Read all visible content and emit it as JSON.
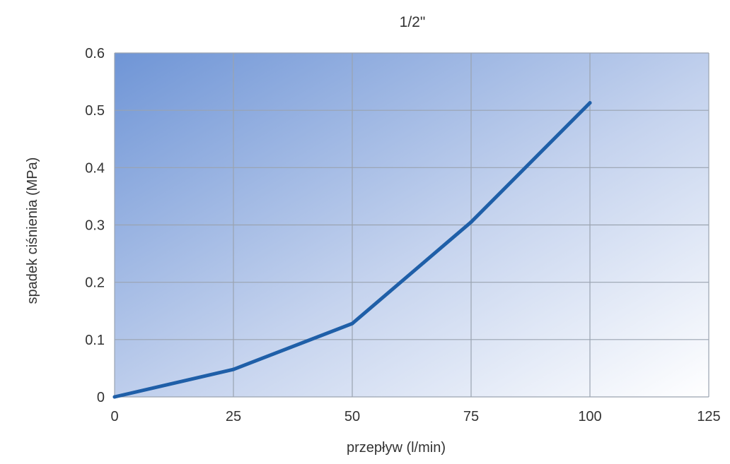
{
  "chart_data": {
    "type": "line",
    "title": "1/2\"",
    "xlabel": "przepływ (l/min)",
    "ylabel": "spadek ciśnienia (MPa)",
    "x": [
      0,
      25,
      50,
      75,
      100
    ],
    "series": [
      {
        "values": [
          0,
          0.048,
          0.128,
          0.305,
          0.513
        ],
        "color": "#1f5fa8"
      }
    ],
    "xlim": [
      0,
      125
    ],
    "ylim": [
      0,
      0.6
    ],
    "xticks": [
      0,
      25,
      50,
      75,
      100,
      125
    ],
    "yticks": [
      0,
      0.1,
      0.2,
      0.3,
      0.4,
      0.5,
      0.6
    ],
    "xtick_labels": [
      "0",
      "25",
      "50",
      "75",
      "100",
      "125"
    ],
    "ytick_labels": [
      "0",
      "0.1",
      "0.2",
      "0.3",
      "0.4",
      "0.5",
      "0.6"
    ],
    "grid": true,
    "legend": "none",
    "colors": {
      "line": "#1f5fa8",
      "grid": "#9aa3b0",
      "background_start": "#6f95d6",
      "background_end": "#ffffff"
    }
  }
}
